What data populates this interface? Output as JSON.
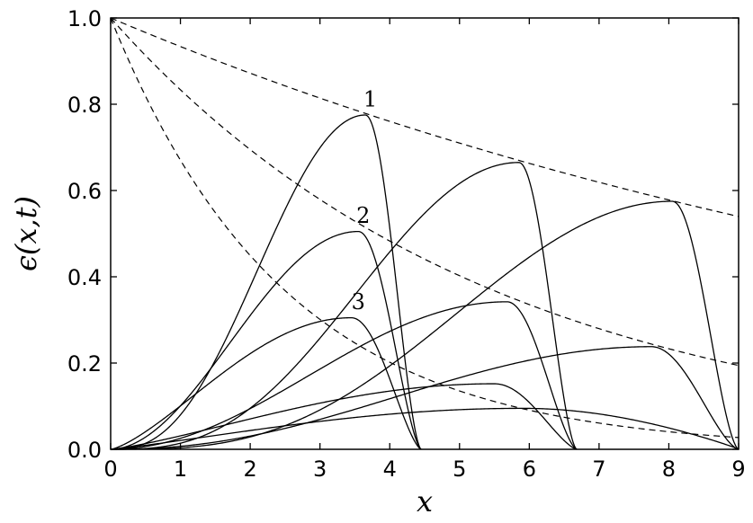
{
  "chart_data": {
    "type": "line",
    "xlabel": "x",
    "ylabel": "ϵ(x,t)",
    "xlim": [
      0,
      9
    ],
    "ylim": [
      0,
      1
    ],
    "xticks": [
      "0",
      "1",
      "2",
      "3",
      "4",
      "5",
      "6",
      "7",
      "8",
      "9"
    ],
    "yticks": [
      "0.0",
      "0.2",
      "0.4",
      "0.6",
      "0.8",
      "1.0"
    ],
    "grid": false,
    "dashed_series": [
      {
        "rate": 0.0685
      },
      {
        "rate": 0.182
      },
      {
        "rate": 0.4
      }
    ],
    "pulse_series": [
      {
        "start": 0,
        "end": 4.45,
        "peak_x": 3.65,
        "peak_y": 0.775,
        "rise_shape": 2.6,
        "fall_shape": 1.6
      },
      {
        "start": 0,
        "end": 6.68,
        "peak_x": 5.85,
        "peak_y": 0.665,
        "rise_shape": 2.9,
        "fall_shape": 1.6
      },
      {
        "start": 0,
        "end": 9.0,
        "peak_x": 8.05,
        "peak_y": 0.575,
        "rise_shape": 3.1,
        "fall_shape": 1.6
      },
      {
        "start": 0,
        "end": 4.45,
        "peak_x": 3.55,
        "peak_y": 0.505,
        "rise_shape": 1.9,
        "fall_shape": 1.5
      },
      {
        "start": 0,
        "end": 6.68,
        "peak_x": 5.68,
        "peak_y": 0.342,
        "rise_shape": 2.0,
        "fall_shape": 1.5
      },
      {
        "start": 0,
        "end": 9.0,
        "peak_x": 7.75,
        "peak_y": 0.238,
        "rise_shape": 2.2,
        "fall_shape": 1.5
      },
      {
        "start": 0,
        "end": 4.45,
        "peak_x": 3.45,
        "peak_y": 0.305,
        "rise_shape": 1.35,
        "fall_shape": 1.45
      },
      {
        "start": 0,
        "end": 6.68,
        "peak_x": 5.5,
        "peak_y": 0.152,
        "rise_shape": 1.25,
        "fall_shape": 1.4
      },
      {
        "start": 0,
        "end": 9.0,
        "peak_x": 5.9,
        "peak_y": 0.095,
        "rise_shape": 1.15,
        "fall_shape": 0.9
      }
    ],
    "annotations": [
      {
        "text": "1",
        "x": 3.72,
        "y": 0.795
      },
      {
        "text": "2",
        "x": 3.62,
        "y": 0.525
      },
      {
        "text": "3",
        "x": 3.55,
        "y": 0.325
      }
    ]
  }
}
